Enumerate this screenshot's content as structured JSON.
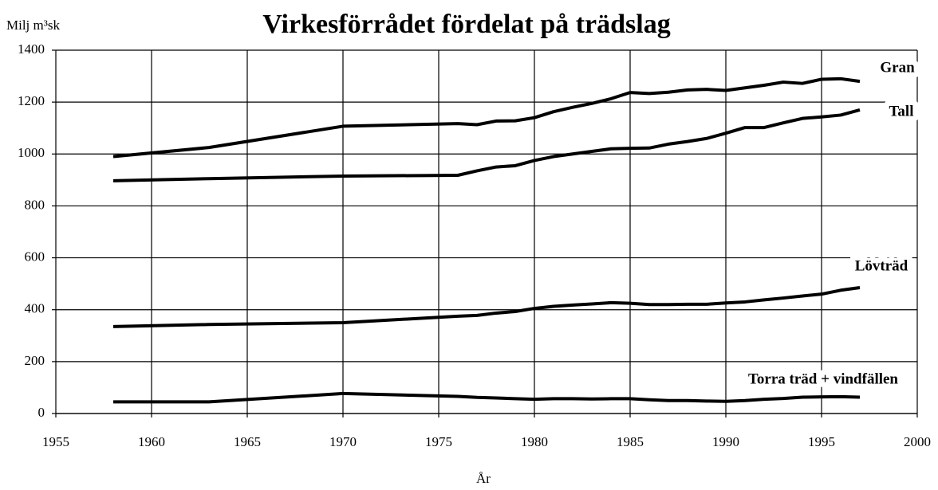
{
  "chart_data": {
    "type": "line",
    "title": "Virkesförrådet fördelat på trädslag",
    "ylabel": "Milj m³sk",
    "xlabel": "År",
    "x": [
      1958,
      1963,
      1970,
      1976,
      1977,
      1978,
      1979,
      1980,
      1981,
      1982,
      1983,
      1984,
      1985,
      1986,
      1987,
      1988,
      1989,
      1990,
      1991,
      1992,
      1993,
      1994,
      1995,
      1996,
      1997
    ],
    "series": [
      {
        "name": "Gran",
        "color": "#000000",
        "values": [
          990,
          1025,
          1107,
          1117,
          1113,
          1127,
          1128,
          1140,
          1163,
          1180,
          1195,
          1213,
          1237,
          1233,
          1238,
          1247,
          1249,
          1245,
          1255,
          1265,
          1277,
          1272,
          1288,
          1290,
          1280
        ]
      },
      {
        "name": "Tall",
        "color": "#000000",
        "values": [
          897,
          905,
          915,
          918,
          935,
          950,
          955,
          975,
          990,
          1000,
          1010,
          1020,
          1022,
          1023,
          1038,
          1048,
          1060,
          1080,
          1102,
          1102,
          1120,
          1137,
          1143,
          1150,
          1170
        ]
      },
      {
        "name": "Lövträd",
        "color": "#000000",
        "values": [
          335,
          343,
          350,
          375,
          378,
          387,
          393,
          405,
          413,
          418,
          422,
          427,
          425,
          420,
          420,
          421,
          421,
          426,
          430,
          438,
          445,
          453,
          460,
          475,
          485
        ]
      },
      {
        "name": "Torra träd + vindfällen",
        "color": "#000000",
        "values": [
          45,
          45,
          77,
          66,
          62,
          60,
          57,
          55,
          57,
          57,
          56,
          57,
          57,
          53,
          50,
          50,
          48,
          47,
          50,
          55,
          58,
          63,
          64,
          65,
          63
        ]
      }
    ],
    "xlim": [
      1955,
      2000
    ],
    "xticks": [
      1955,
      1960,
      1965,
      1970,
      1975,
      1980,
      1985,
      1990,
      1995,
      2000
    ],
    "ylim": [
      0,
      1400
    ],
    "yticks": [
      0,
      200,
      400,
      600,
      800,
      1000,
      1200,
      1400
    ],
    "grid": true
  }
}
